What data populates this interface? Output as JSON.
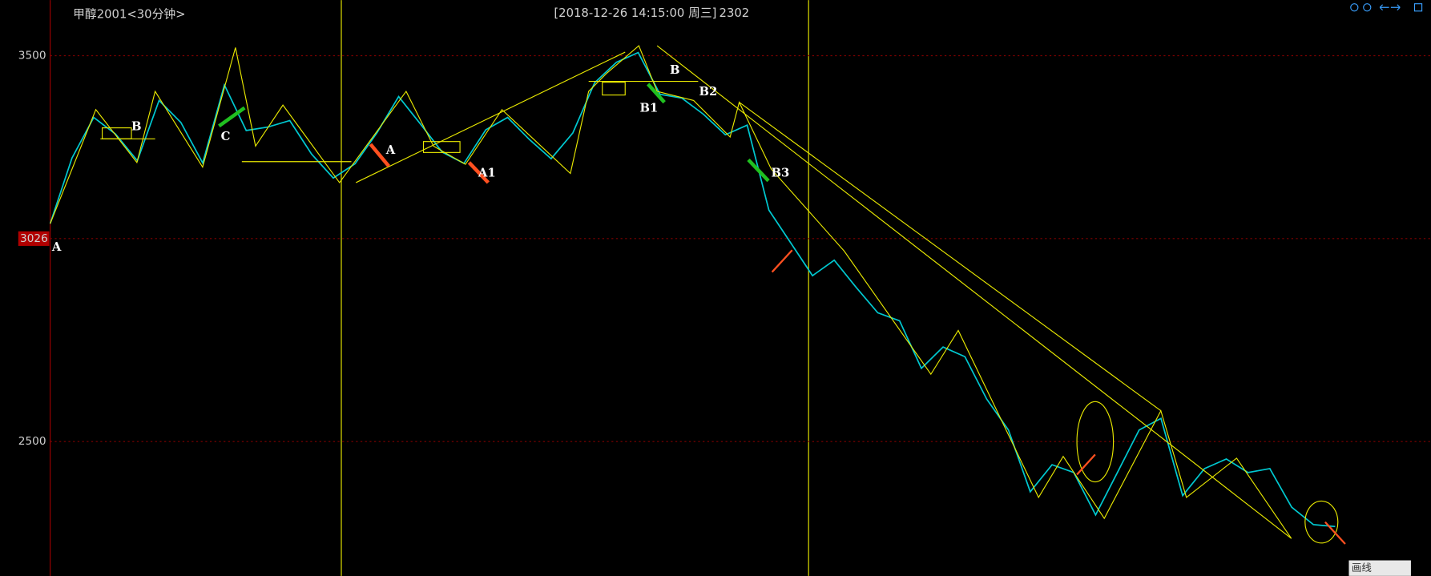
{
  "chart_data": {
    "type": "line",
    "title": "甲醇2001<30分钟>",
    "subtitle": "[2018-12-26  14:15:00 周三]",
    "current_price": 2302,
    "marker_value": 3026,
    "color": "#00c8d0",
    "ylim": [
      2152,
      3644
    ],
    "yticks": [
      3500,
      2500
    ],
    "grid": true,
    "values": [
      3065,
      3235,
      3340,
      3297,
      3228,
      3384,
      3327,
      3222,
      3424,
      3306,
      3315,
      3332,
      3245,
      3183,
      3220,
      3300,
      3394,
      3323,
      3250,
      3221,
      3308,
      3340,
      3283,
      3233,
      3300,
      3430,
      3483,
      3508,
      3400,
      3390,
      3348,
      3295,
      3320,
      3100,
      3015,
      2930,
      2970,
      2900,
      2834,
      2813,
      2690,
      2745,
      2720,
      2610,
      2530,
      2370,
      2440,
      2420,
      2310,
      2420,
      2530,
      2560,
      2360,
      2430,
      2455,
      2420,
      2430,
      2330,
      2285,
      2280
    ],
    "annotations": [
      "A",
      "B",
      "C",
      "A",
      "A1",
      "B",
      "B1",
      "B2",
      "B3"
    ]
  },
  "toolbar": {
    "draw_button": "画线"
  }
}
